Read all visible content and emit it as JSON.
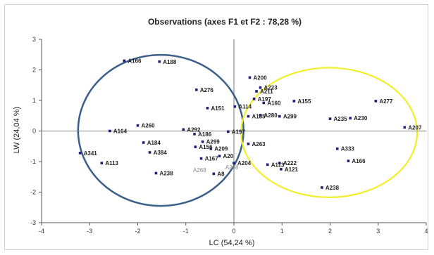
{
  "chart_data": {
    "type": "scatter",
    "title": "Observations (axes F1 et F2 : 78,28 %)",
    "xlabel": "LC (54,24 %)",
    "ylabel": "LW (24,04 %)",
    "xlim": [
      -4,
      4
    ],
    "ylim": [
      -3,
      3
    ],
    "xticks": [
      "-4",
      "-3",
      "-2",
      "-1",
      "0",
      "1",
      "2",
      "3",
      "4"
    ],
    "yticks": [
      "-3",
      "-2",
      "-1",
      "0",
      "1",
      "2",
      "3"
    ],
    "grid": false,
    "colors": {
      "points": "#1f1f7a",
      "blue_ellipse": "#3b5f8a",
      "yellow_ellipse": "#f2ee2a",
      "axis": "#555555"
    },
    "ellipses": [
      {
        "name": "blue",
        "cx": -1.52,
        "cy": 0.02,
        "rx": 1.72,
        "ry": 2.47
      },
      {
        "name": "yellow",
        "cx": 1.98,
        "cy": -0.05,
        "rx": 1.83,
        "ry": 2.12
      }
    ],
    "points": [
      {
        "label": "A166",
        "x": -2.28,
        "y": 2.3
      },
      {
        "label": "A188",
        "x": -1.55,
        "y": 2.27
      },
      {
        "label": "A276",
        "x": -0.78,
        "y": 1.35
      },
      {
        "label": "A151",
        "x": -0.55,
        "y": 0.75
      },
      {
        "label": "A114",
        "x": 0.02,
        "y": 0.8
      },
      {
        "label": "A200",
        "x": 0.33,
        "y": 1.75
      },
      {
        "label": "A223",
        "x": 0.55,
        "y": 1.42
      },
      {
        "label": "A211",
        "x": 0.47,
        "y": 1.3
      },
      {
        "label": "A197",
        "x": 0.42,
        "y": 1.05
      },
      {
        "label": "A160",
        "x": 0.62,
        "y": 0.92
      },
      {
        "label": "A155",
        "x": 1.25,
        "y": 0.98
      },
      {
        "label": "A277",
        "x": 2.95,
        "y": 0.98
      },
      {
        "label": "A185",
        "x": 0.3,
        "y": 0.48
      },
      {
        "label": "A280",
        "x": 0.55,
        "y": 0.52
      },
      {
        "label": "A299",
        "x": 0.95,
        "y": 0.48
      },
      {
        "label": "A235",
        "x": 2.0,
        "y": 0.4
      },
      {
        "label": "A230",
        "x": 2.42,
        "y": 0.42
      },
      {
        "label": "A207",
        "x": 3.55,
        "y": 0.12
      },
      {
        "label": "A260",
        "x": -2.0,
        "y": 0.18
      },
      {
        "label": "A164",
        "x": -2.58,
        "y": 0.0
      },
      {
        "label": "A184",
        "x": -1.88,
        "y": -0.38
      },
      {
        "label": "A292",
        "x": -1.05,
        "y": 0.05
      },
      {
        "label": "A186",
        "x": -0.82,
        "y": -0.1
      },
      {
        "label": "A197",
        "x": -0.12,
        "y": -0.02
      },
      {
        "label": "A299",
        "x": -0.65,
        "y": -0.35
      },
      {
        "label": "A156",
        "x": -0.8,
        "y": -0.52
      },
      {
        "label": "A209",
        "x": -0.48,
        "y": -0.58
      },
      {
        "label": "A263",
        "x": 0.3,
        "y": -0.42
      },
      {
        "label": "A341",
        "x": -3.2,
        "y": -0.72
      },
      {
        "label": "A384",
        "x": -1.75,
        "y": -0.7
      },
      {
        "label": "A113",
        "x": -2.75,
        "y": -1.05
      },
      {
        "label": "A167",
        "x": -0.68,
        "y": -0.9
      },
      {
        "label": "A20",
        "x": -0.3,
        "y": -0.82
      },
      {
        "label": "A238",
        "x": -1.62,
        "y": -1.38
      },
      {
        "label": "A204",
        "x": 0.0,
        "y": -1.05
      },
      {
        "label": "A113",
        "x": 0.7,
        "y": -1.1
      },
      {
        "label": "A222",
        "x": 0.95,
        "y": -1.05
      },
      {
        "label": "A121",
        "x": 0.98,
        "y": -1.25
      },
      {
        "label": "A8",
        "x": -0.42,
        "y": -1.4
      },
      {
        "label": "A333",
        "x": 2.15,
        "y": -0.58
      },
      {
        "label": "A166",
        "x": 2.38,
        "y": -0.98
      },
      {
        "label": "A238",
        "x": 1.83,
        "y": -1.85
      }
    ],
    "faint_labels": [
      {
        "label": "A268",
        "x": -0.85,
        "y": -1.28
      },
      {
        "label": "A268",
        "x": -0.18,
        "y": -1.18
      }
    ]
  }
}
